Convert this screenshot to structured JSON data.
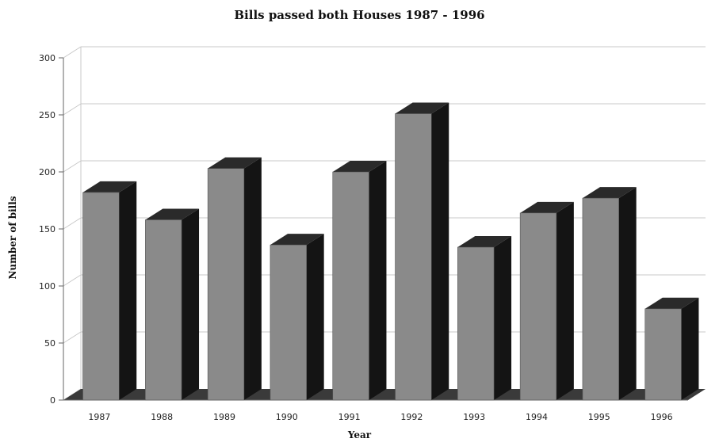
{
  "chart_data": {
    "type": "bar",
    "title": "Bills passed both Houses 1987 - 1996",
    "xlabel": "Year",
    "ylabel": "Number of bills",
    "categories": [
      "1987",
      "1988",
      "1989",
      "1990",
      "1991",
      "1992",
      "1993",
      "1994",
      "1995",
      "1996"
    ],
    "values": [
      182,
      158,
      203,
      136,
      200,
      251,
      134,
      164,
      177,
      80
    ],
    "ylim": [
      0,
      300
    ],
    "yticks": [
      "0",
      "50",
      "100",
      "150",
      "200",
      "250",
      "300"
    ],
    "grid": true,
    "three_d": true,
    "colors": {
      "bar_front": "#8a8a8a",
      "bar_side": "#141414",
      "bar_top": "#2a2a2a",
      "grid": "#c8c8c8",
      "axis": "#666666"
    }
  }
}
